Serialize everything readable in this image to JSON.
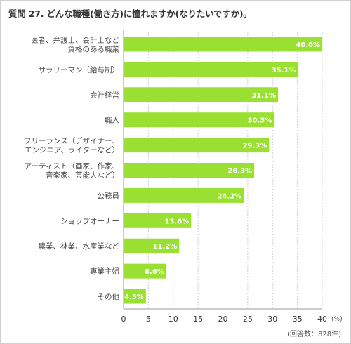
{
  "title": "質問 27. どんな職種(働き方)に憧れますか(なりたいですか)。",
  "note": "(回答数：828件)",
  "colors": {
    "bar": "#99e033",
    "grid": "#cccccc",
    "axis": "#999999"
  },
  "chart_data": {
    "type": "bar",
    "orientation": "horizontal",
    "categories": [
      [
        "医者、弁護士、会計士など",
        "資格のある職業"
      ],
      [
        "サラリーマン（給与制）"
      ],
      [
        "会社経営"
      ],
      [
        "職人"
      ],
      [
        "フリーランス（デザイナー、",
        "エンジニア、ライターなど）"
      ],
      [
        "アーティスト（画家、作家、",
        "音楽家、芸能人など）"
      ],
      [
        "公務員"
      ],
      [
        "ショップオーナー"
      ],
      [
        "農業、林業、水産業など"
      ],
      [
        "専業主婦"
      ],
      [
        "その他"
      ]
    ],
    "values": [
      40.0,
      35.1,
      31.1,
      30.3,
      29.3,
      26.3,
      24.2,
      13.6,
      11.2,
      8.6,
      4.5
    ],
    "value_labels": [
      "40.0%",
      "35.1%",
      "31.1%",
      "30.3%",
      "29.3%",
      "26.3%",
      "24.2%",
      "13.6%",
      "11.2%",
      "8.6%",
      "4.5%"
    ],
    "xlim": [
      0,
      40
    ],
    "xticks": [
      0,
      5,
      10,
      15,
      20,
      25,
      30,
      35,
      40
    ],
    "xunit": "(%)",
    "grid": true
  }
}
